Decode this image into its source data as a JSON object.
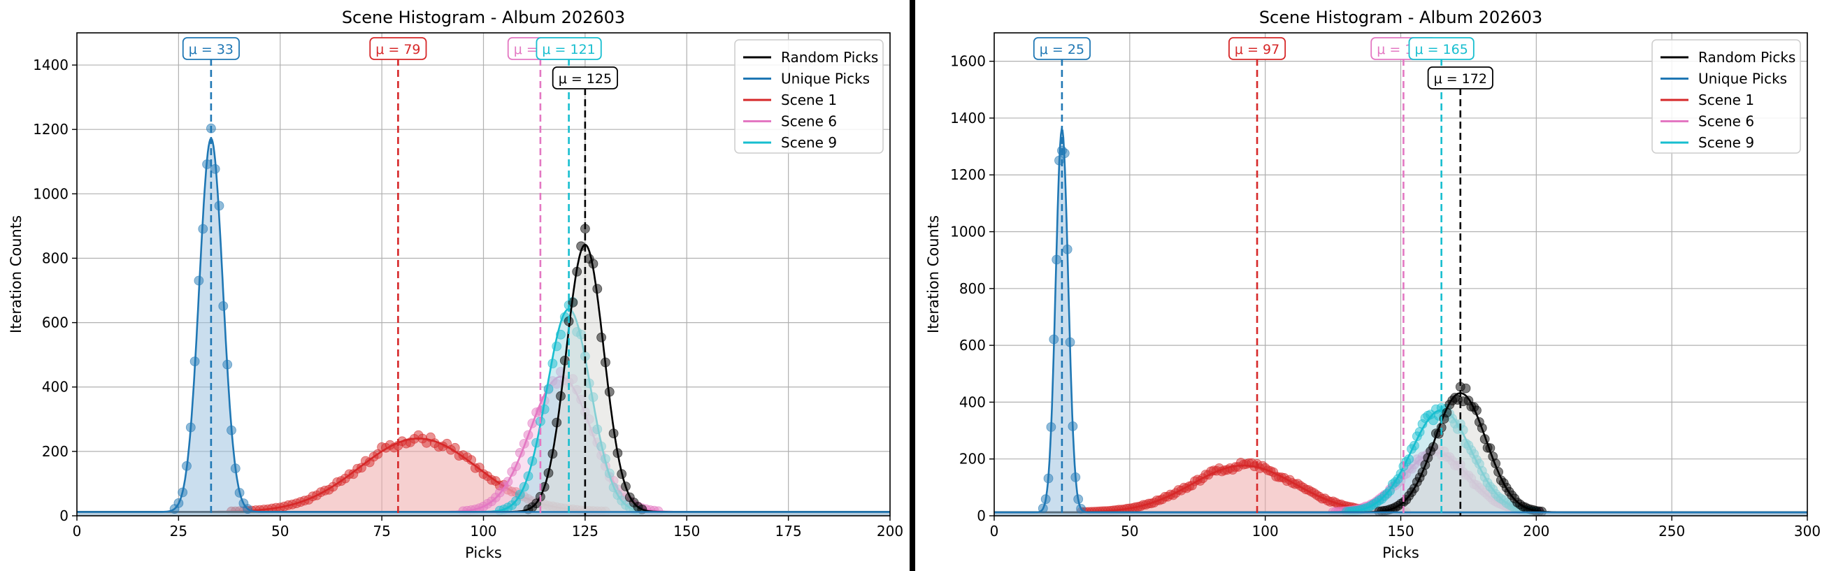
{
  "colors": {
    "random": "#000000",
    "unique": "#1f77b4",
    "scene1": "#d62728",
    "scene6": "#e377c2",
    "scene9": "#17becf",
    "grid": "#b0b0b0"
  },
  "chart_data": [
    {
      "type": "line",
      "title": "Scene Histogram - Album 202603",
      "xlabel": "Picks",
      "ylabel": "Iteration Counts",
      "xlim": [
        0,
        200
      ],
      "ylim": [
        0,
        1500
      ],
      "xticks": [
        0,
        25,
        50,
        75,
        100,
        125,
        150,
        175,
        200
      ],
      "yticks": [
        0,
        200,
        400,
        600,
        800,
        1000,
        1200,
        1400
      ],
      "grid": true,
      "legend": "top-right",
      "series": [
        {
          "name": "Random Picks",
          "color_key": "random",
          "mean": 125,
          "mean_label": "μ = 125",
          "sigma": 4.6,
          "peak": 830,
          "fill": "#dcdcd8",
          "label_row": 2
        },
        {
          "name": "Unique Picks",
          "color_key": "unique",
          "mean": 33,
          "mean_label": "μ = 33",
          "sigma": 2.9,
          "peak": 1160,
          "fill": "#9ec3e0",
          "label_row": 1
        },
        {
          "name": "Scene 1",
          "color_key": "scene1",
          "mean": 79,
          "mean_label": "μ = 79",
          "sigma": 14.5,
          "peak": 228,
          "shift": 5,
          "fill": "#eeaaaa",
          "label_row": 1
        },
        {
          "name": "Scene 6",
          "color_key": "scene6",
          "mean": 114,
          "mean_label": "μ = 114",
          "sigma": 7.5,
          "peak": 420,
          "shift": 5,
          "fill": "#f4c6e6",
          "label_row": 1
        },
        {
          "name": "Scene 9",
          "color_key": "scene9",
          "mean": 121,
          "mean_label": "μ = 121",
          "sigma": 5.4,
          "peak": 630,
          "fill": "#a8dde6",
          "label_row": 1
        }
      ]
    },
    {
      "type": "line",
      "title": "Scene Histogram - Album 202603",
      "xlabel": "Picks",
      "ylabel": "Iteration Counts",
      "xlim": [
        0,
        300
      ],
      "ylim": [
        0,
        1700
      ],
      "xticks": [
        0,
        50,
        100,
        150,
        200,
        250,
        300
      ],
      "yticks": [
        0,
        200,
        400,
        600,
        800,
        1000,
        1200,
        1400,
        1600
      ],
      "grid": true,
      "legend": "top-right",
      "series": [
        {
          "name": "Random Picks",
          "color_key": "random",
          "mean": 172,
          "mean_label": "μ = 172",
          "sigma": 9.5,
          "peak": 420,
          "fill": "#dcdcd8",
          "label_row": 2
        },
        {
          "name": "Unique Picks",
          "color_key": "unique",
          "mean": 25,
          "mean_label": "μ = 25",
          "sigma": 2.3,
          "peak": 1350,
          "fill": "#9ec3e0",
          "label_row": 1
        },
        {
          "name": "Scene 1",
          "color_key": "scene1",
          "mean": 97,
          "mean_label": "μ = 97",
          "sigma": 19,
          "peak": 165,
          "shift": -5,
          "fill": "#eeaaaa",
          "label_row": 1
        },
        {
          "name": "Scene 6",
          "color_key": "scene6",
          "mean": 151,
          "mean_label": "μ = 151",
          "sigma": 12,
          "peak": 210,
          "shift": 12,
          "fill": "#f4c6e6",
          "label_row": 1
        },
        {
          "name": "Scene 9",
          "color_key": "scene9",
          "mean": 165,
          "mean_label": "μ = 165",
          "sigma": 11,
          "peak": 360,
          "fill": "#a8dde6",
          "label_row": 1
        }
      ]
    }
  ]
}
